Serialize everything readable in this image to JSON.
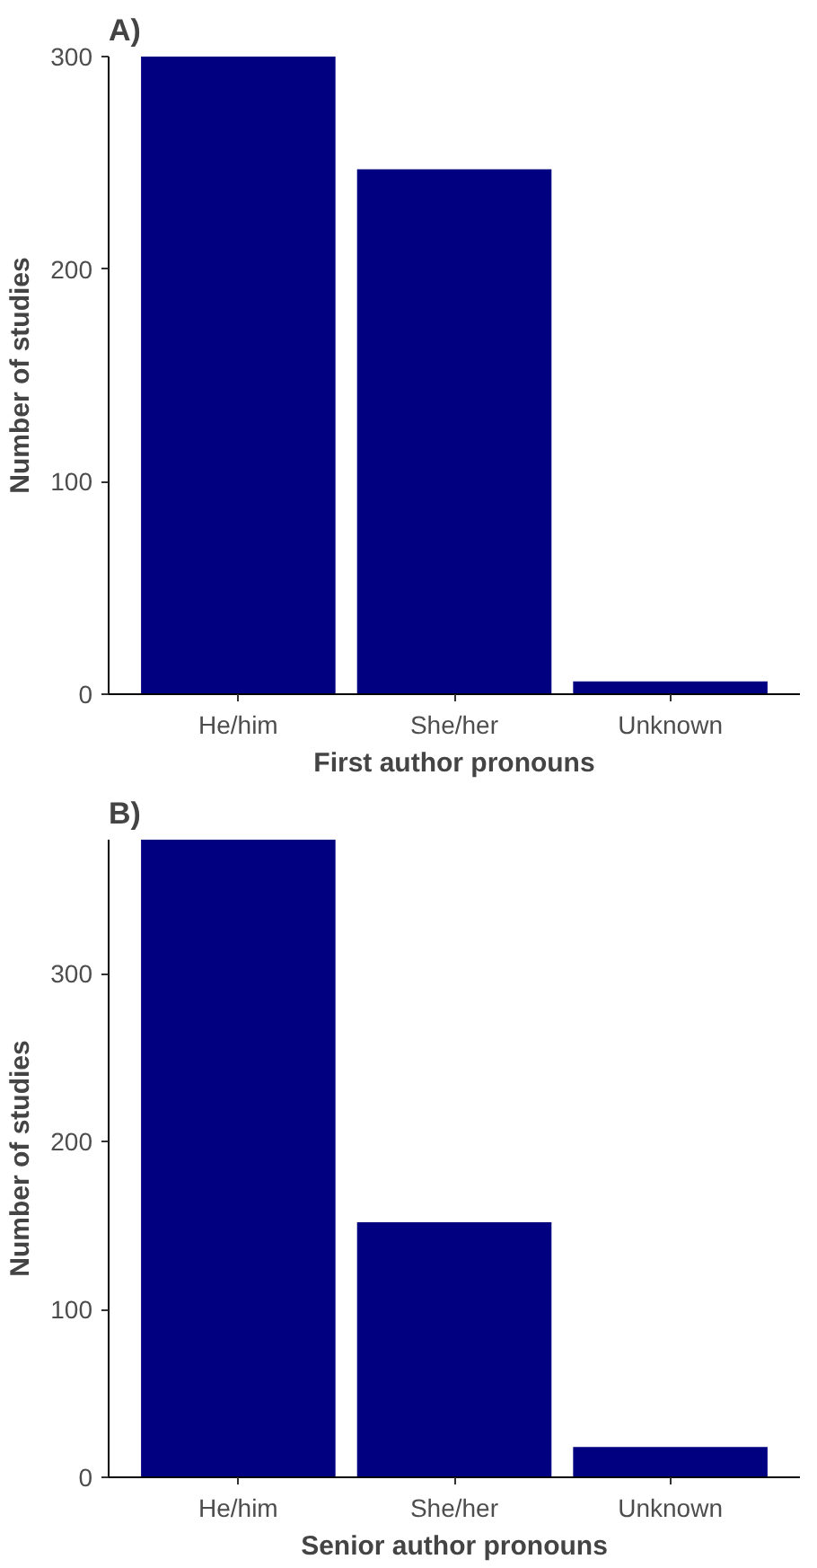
{
  "chart_data": [
    {
      "type": "bar",
      "title": "A)",
      "xlabel": "First author pronouns",
      "ylabel": "Number of studies",
      "categories": [
        "He/him",
        "She/her",
        "Unknown"
      ],
      "values": [
        300,
        247,
        6
      ],
      "color": "#000080",
      "ylim": [
        0,
        300
      ],
      "yticks": [
        0,
        100,
        200,
        300
      ],
      "grid": false
    },
    {
      "type": "bar",
      "title": "B)",
      "xlabel": "Senior author pronouns",
      "ylabel": "Number of studies",
      "categories": [
        "He/him",
        "She/her",
        "Unknown"
      ],
      "values": [
        380,
        152,
        18
      ],
      "color": "#000080",
      "ylim": [
        0,
        380
      ],
      "yticks": [
        0,
        100,
        200,
        300
      ],
      "grid": false
    }
  ]
}
